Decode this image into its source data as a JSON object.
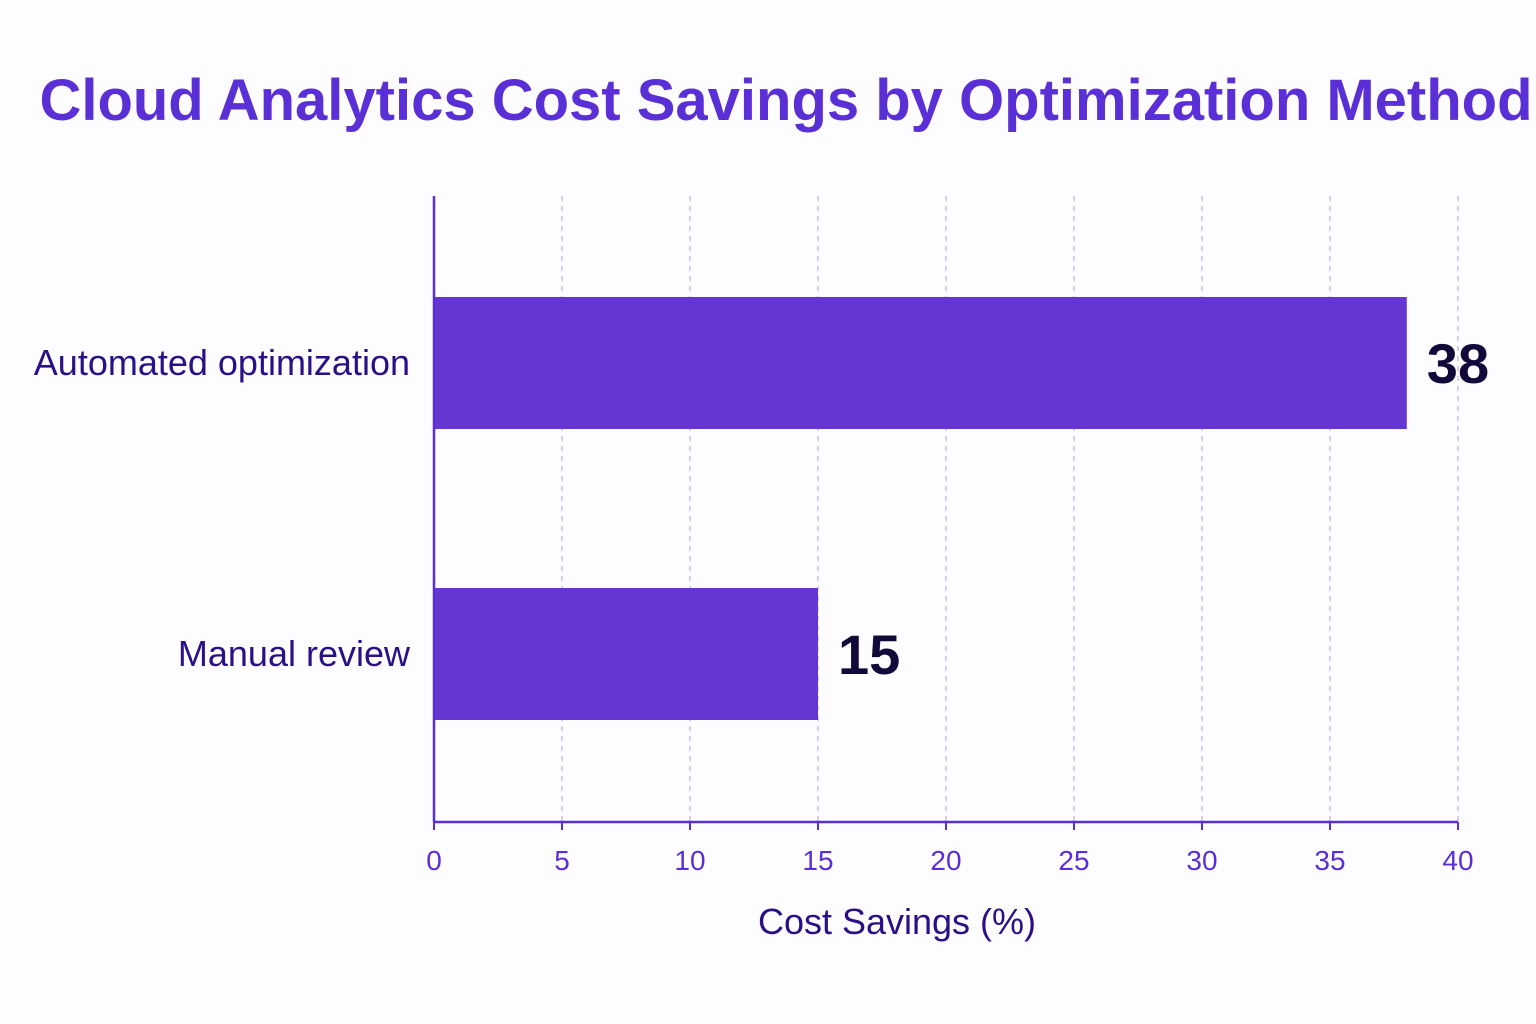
{
  "chart_data": {
    "type": "bar",
    "orientation": "horizontal",
    "title": "Cloud Analytics Cost Savings by Optimization Method",
    "categories": [
      "Automated optimization",
      "Manual review"
    ],
    "values": [
      38,
      15
    ],
    "value_labels": [
      "38",
      "15"
    ],
    "xlabel": "Cost Savings (%)",
    "ylabel": "",
    "xlim": [
      0,
      40
    ],
    "xticks": [
      0,
      5,
      10,
      15,
      20,
      25,
      30,
      35,
      40
    ],
    "xtick_labels": [
      "0",
      "5",
      "10",
      "15",
      "20",
      "25",
      "30",
      "35",
      "40"
    ],
    "grid": "vertical dashed",
    "legend": "none",
    "colors": {
      "bar": "#6636d3",
      "title": "#5b2fd6",
      "axis": "#5b2fd6",
      "grid": "#c9c0f2",
      "labels": "#2a0f86",
      "values": "#12083a"
    }
  }
}
